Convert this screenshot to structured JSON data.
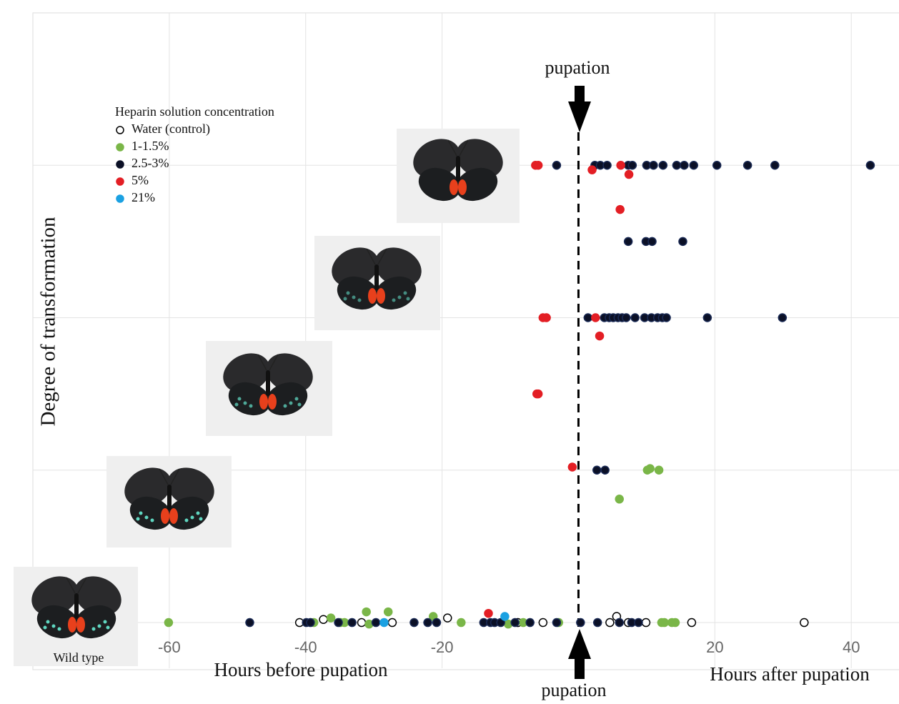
{
  "chart_data": {
    "type": "scatter",
    "annotations": {
      "top_arrow": "pupation",
      "bottom_arrow": "pupation",
      "left_axis": "Hours before pupation",
      "right_axis": "Hours after pupation",
      "image_caption": "Wild type"
    },
    "y_label": "Degree of transformation",
    "legend_title": "Heparin solution concentration",
    "xlim": [
      -80,
      47
    ],
    "ylim": [
      -0.3,
      4
    ],
    "xticks": [
      -60,
      -40,
      -20,
      20,
      40
    ],
    "yticks": [
      0,
      1,
      2,
      3
    ],
    "ytick_labels": false,
    "grid": true,
    "reference_line_x": 0,
    "series": [
      {
        "name": "Water (control)",
        "color": "#ffffff",
        "x": [
          -40.9,
          -37.4,
          -31.8,
          -27.3,
          -19.2,
          -8.9,
          -5.2,
          4.6,
          5.6,
          7.3,
          9.9,
          16.6,
          33.1
        ],
        "y": [
          0,
          0.02,
          0,
          0,
          0.03,
          0,
          0,
          0,
          0.04,
          0,
          0,
          0,
          0
        ]
      },
      {
        "name": "1-1.5%",
        "color": "#7ab648",
        "x": [
          10.1,
          10.5,
          11.8,
          6.0,
          -60.1,
          -38.8,
          -36.3,
          -34.9,
          -34.3,
          -31.1,
          -30.7,
          -27.9,
          -21.3,
          -17.2,
          -10.3,
          -8.1,
          -2.9,
          12.2,
          12.6,
          13.7,
          14.2
        ],
        "y": [
          1.0,
          1.01,
          1.0,
          0.81,
          0,
          0,
          0.03,
          0,
          0,
          0.07,
          -0.01,
          0.07,
          0.04,
          0,
          -0.01,
          0,
          0,
          0,
          0,
          0,
          0
        ]
      },
      {
        "name": "2.5-3%",
        "color": "#0b1026",
        "x": [
          -3.2,
          2.4,
          3.2,
          4.2,
          7.3,
          7.9,
          10,
          11,
          12.4,
          14.4,
          15.5,
          16.9,
          20.3,
          24.8,
          28.8,
          42.8,
          7.3,
          9.9,
          10.8,
          15.3,
          1.4,
          3.8,
          4.5,
          5.1,
          5.8,
          6.4,
          7.0,
          8.3,
          9.7,
          10.7,
          11.6,
          12.3,
          12.9,
          18.9,
          29.9,
          2.7,
          3.9,
          -48.2,
          -39.9,
          -39.3,
          -35.2,
          -33.2,
          -29.7,
          -24.1,
          -22.1,
          -20.8,
          -13.9,
          -12.9,
          -12.3,
          -11.4,
          -9.3,
          -7.1,
          -3.2,
          0.3,
          2.8,
          6.0,
          7.8,
          8.8
        ],
        "y": [
          3,
          3,
          3,
          3,
          3,
          3,
          3,
          3,
          3,
          3,
          3,
          3,
          3,
          3,
          3,
          3,
          2.5,
          2.5,
          2.5,
          2.5,
          2,
          2,
          2,
          2,
          2,
          2,
          2,
          2,
          2,
          2,
          2,
          2,
          2,
          2,
          2,
          1,
          1,
          0,
          0,
          0,
          0,
          0,
          0,
          0,
          0,
          0,
          0,
          0,
          0,
          0,
          0,
          0,
          0,
          0,
          0,
          0,
          0,
          0
        ]
      },
      {
        "name": "5%",
        "color": "#e31e24",
        "x": [
          -6.3,
          -5.9,
          6.2,
          2.0,
          7.4,
          6.1,
          -5.2,
          -4.7,
          2.5,
          3.1,
          -6.1,
          -5.9,
          -0.9,
          -13.2
        ],
        "y": [
          3,
          3,
          3,
          2.97,
          2.94,
          2.71,
          2,
          2,
          2,
          1.88,
          1.5,
          1.5,
          1.02,
          0.06
        ]
      },
      {
        "name": "21%",
        "color": "#1ba1e2",
        "x": [
          -28.5,
          -10.8
        ],
        "y": [
          0,
          0.04
        ]
      }
    ]
  }
}
